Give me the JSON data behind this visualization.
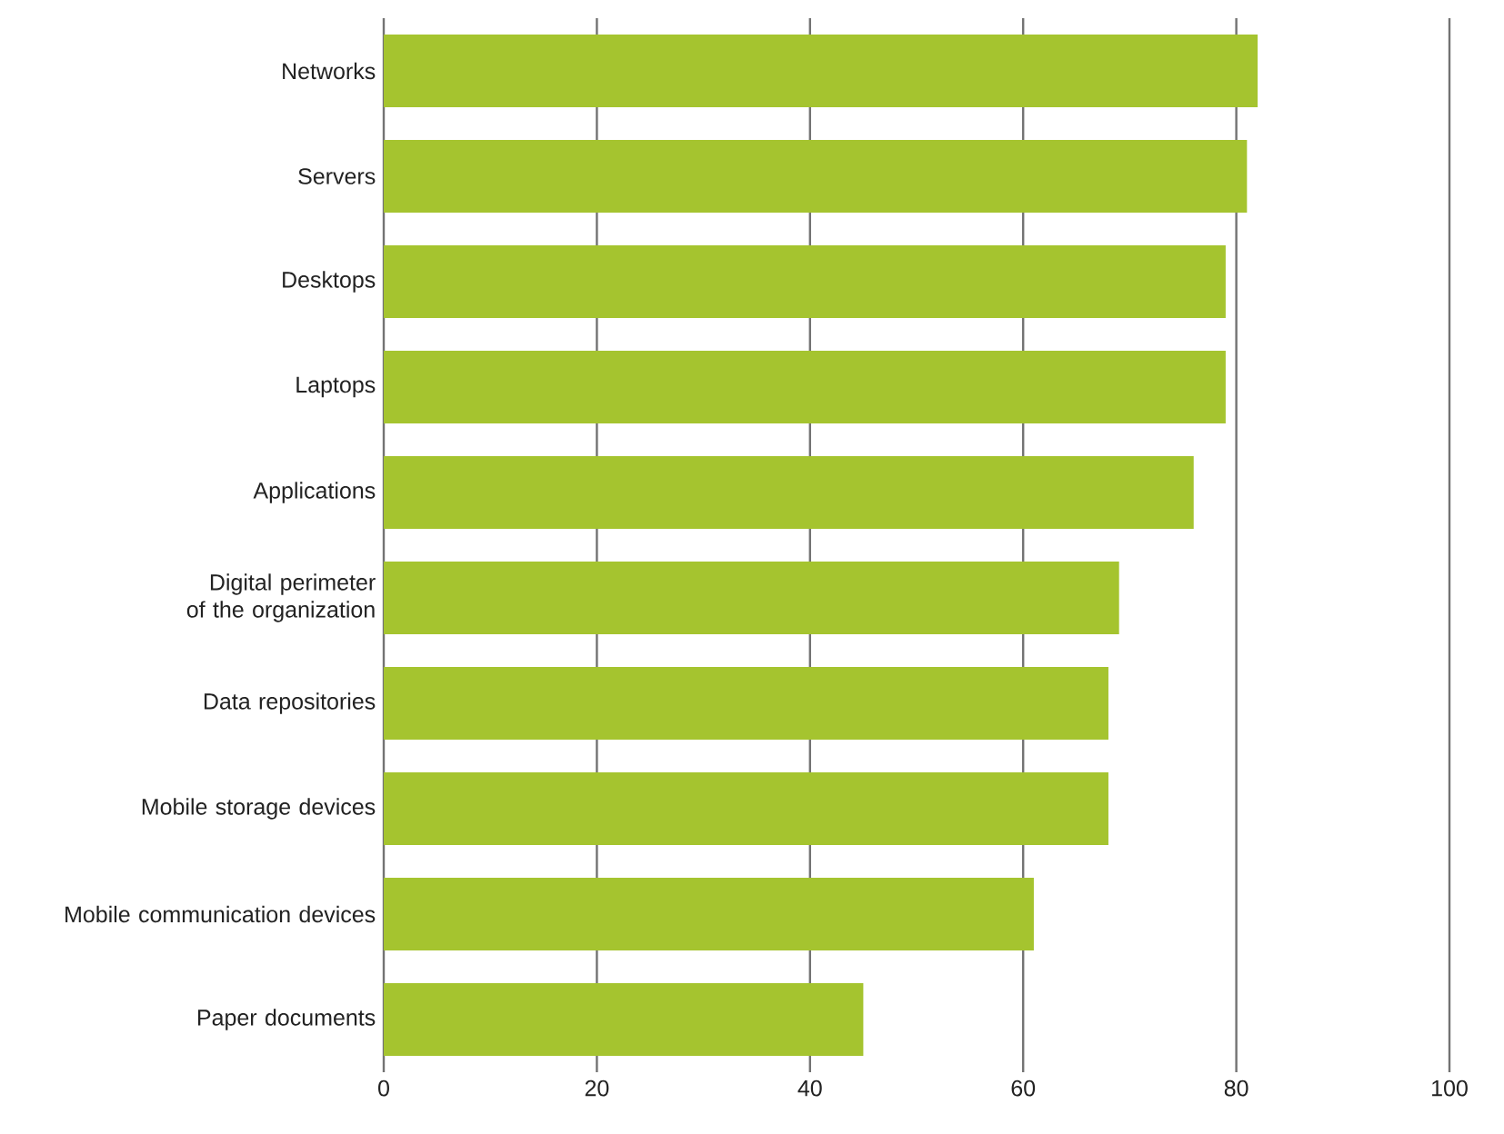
{
  "chart_data": {
    "type": "bar",
    "orientation": "horizontal",
    "categories": [
      "Networks",
      "Servers",
      "Desktops",
      "Laptops",
      "Applications",
      "Digital perimeter of the organization",
      "Data repositories",
      "Mobile storage devices",
      "Mobile communication devices",
      "Paper documents"
    ],
    "values": [
      82,
      81,
      79,
      79,
      76,
      69,
      68,
      68,
      61,
      45
    ],
    "color": "#a5c42f",
    "xlim": [
      0,
      100
    ],
    "xticks": [
      0,
      20,
      40,
      60,
      80,
      100
    ],
    "grid": "x"
  }
}
